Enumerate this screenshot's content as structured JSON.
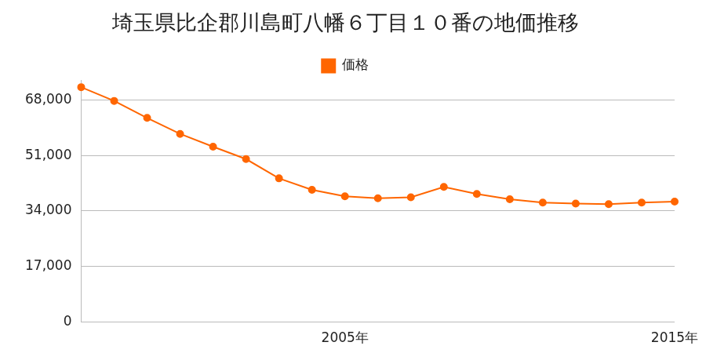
{
  "chart_data": {
    "type": "line",
    "title": "埼玉県比企郡川島町八幡６丁目１０番の地価推移",
    "categories": [
      null,
      null,
      null,
      null,
      null,
      null,
      null,
      null,
      "2005年",
      null,
      null,
      null,
      null,
      null,
      null,
      null,
      null,
      null,
      "2015年"
    ],
    "series": [
      {
        "name": "価格",
        "color": "#ff6600",
        "marker": "circle",
        "values": [
          71900,
          67700,
          62500,
          57600,
          53700,
          49900,
          44000,
          40500,
          38500,
          37900,
          38200,
          41400,
          39200,
          37600,
          36600,
          36300,
          36100,
          36600,
          36900
        ]
      }
    ],
    "ylim": [
      0,
      74000
    ],
    "yticks": [
      0,
      {
        "value": 17000,
        "label": "17,000"
      },
      {
        "value": 34000,
        "label": "34,000"
      },
      {
        "value": 51000,
        "label": "51,000"
      },
      {
        "value": 68000,
        "label": "68,000"
      }
    ],
    "grid": true,
    "legend": "top"
  }
}
